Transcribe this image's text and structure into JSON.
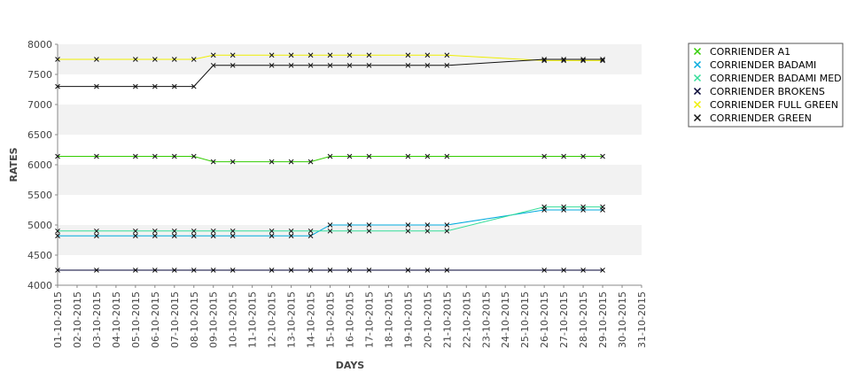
{
  "chart_data": {
    "type": "line",
    "xlabel": "DAYS",
    "ylabel": "RATES",
    "ylim": [
      4000,
      8000
    ],
    "yticks": [
      4000,
      4500,
      5000,
      5500,
      6000,
      6500,
      7000,
      7500,
      8000
    ],
    "xlim": [
      "01-10-2015",
      "31-10-2015"
    ],
    "xticks": [
      "01-10-2015",
      "02-10-2015",
      "03-10-2015",
      "04-10-2015",
      "05-10-2015",
      "06-10-2015",
      "07-10-2015",
      "08-10-2015",
      "09-10-2015",
      "10-10-2015",
      "11-10-2015",
      "12-10-2015",
      "13-10-2015",
      "14-10-2015",
      "15-10-2015",
      "16-10-2015",
      "17-10-2015",
      "18-10-2015",
      "19-10-2015",
      "20-10-2015",
      "21-10-2015",
      "22-10-2015",
      "23-10-2015",
      "24-10-2015",
      "25-10-2015",
      "26-10-2015",
      "27-10-2015",
      "28-10-2015",
      "29-10-2015",
      "30-10-2015",
      "31-10-2015"
    ],
    "grid": "alternating horizontal bands",
    "legend_position": "right",
    "x": [
      "01-10-2015",
      "03-10-2015",
      "05-10-2015",
      "06-10-2015",
      "07-10-2015",
      "08-10-2015",
      "09-10-2015",
      "10-10-2015",
      "12-10-2015",
      "13-10-2015",
      "14-10-2015",
      "15-10-2015",
      "16-10-2015",
      "17-10-2015",
      "19-10-2015",
      "20-10-2015",
      "21-10-2015",
      "26-10-2015",
      "27-10-2015",
      "28-10-2015",
      "29-10-2015"
    ],
    "series": [
      {
        "name": "CORRIENDER A1",
        "color": "#33cc00",
        "values": [
          6140,
          6140,
          6140,
          6140,
          6140,
          6140,
          6050,
          6050,
          6050,
          6050,
          6050,
          6140,
          6140,
          6140,
          6140,
          6140,
          6140,
          6140,
          6140,
          6140,
          6140
        ]
      },
      {
        "name": "CORRIENDER BADAMI",
        "color": "#00aadd",
        "values": [
          4820,
          4820,
          4820,
          4820,
          4820,
          4820,
          4820,
          4820,
          4820,
          4820,
          4820,
          5000,
          5000,
          5000,
          5000,
          5000,
          5000,
          5250,
          5250,
          5250,
          5250
        ]
      },
      {
        "name": "CORRIENDER BADAMI MED",
        "color": "#33dd99",
        "values": [
          4900,
          4900,
          4900,
          4900,
          4900,
          4900,
          4900,
          4900,
          4900,
          4900,
          4900,
          4900,
          4900,
          4900,
          4900,
          4900,
          4900,
          5300,
          5300,
          5300,
          5300
        ]
      },
      {
        "name": "CORRIENDER BROKENS",
        "color": "#000033",
        "values": [
          4250,
          4250,
          4250,
          4250,
          4250,
          4250,
          4250,
          4250,
          4250,
          4250,
          4250,
          4250,
          4250,
          4250,
          4250,
          4250,
          4250,
          4250,
          4250,
          4250,
          4250
        ]
      },
      {
        "name": "CORRIENDER FULL GREEN",
        "color": "#eeee00",
        "values": [
          7750,
          7750,
          7750,
          7750,
          7750,
          7750,
          7820,
          7820,
          7820,
          7820,
          7820,
          7820,
          7820,
          7820,
          7820,
          7820,
          7820,
          7730,
          7730,
          7730,
          7730
        ]
      },
      {
        "name": "CORRIENDER GREEN",
        "color": "#111111",
        "values": [
          7300,
          7300,
          7300,
          7300,
          7300,
          7300,
          7650,
          7650,
          7650,
          7650,
          7650,
          7650,
          7650,
          7650,
          7650,
          7650,
          7650,
          7750,
          7750,
          7750,
          7750
        ]
      }
    ]
  }
}
